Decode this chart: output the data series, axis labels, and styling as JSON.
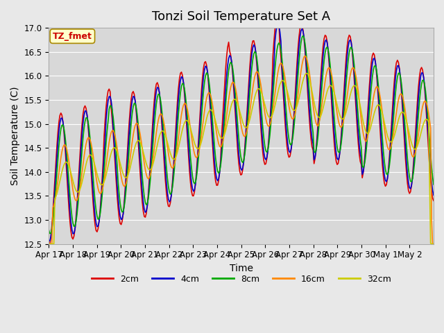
{
  "title": "Tonzi Soil Temperature Set A",
  "xlabel": "Time",
  "ylabel": "Soil Temperature (C)",
  "ylim": [
    12.5,
    17.0
  ],
  "xtick_labels": [
    "Apr 17",
    "Apr 18",
    "Apr 19",
    "Apr 20",
    "Apr 21",
    "Apr 22",
    "Apr 23",
    "Apr 24",
    "Apr 25",
    "Apr 26",
    "Apr 27",
    "Apr 28",
    "Apr 29",
    "Apr 30",
    "May 1",
    "May 2"
  ],
  "series_colors": {
    "2cm": "#dd0000",
    "4cm": "#0000cc",
    "8cm": "#00aa00",
    "16cm": "#ff8800",
    "32cm": "#cccc00"
  },
  "legend_label": "TZ_fmet",
  "background_color": "#e8e8e8",
  "plot_bg_color": "#d8d8d8",
  "grid_color": "#ffffff",
  "title_fontsize": 13,
  "axis_label_fontsize": 10,
  "tick_fontsize": 8.5
}
